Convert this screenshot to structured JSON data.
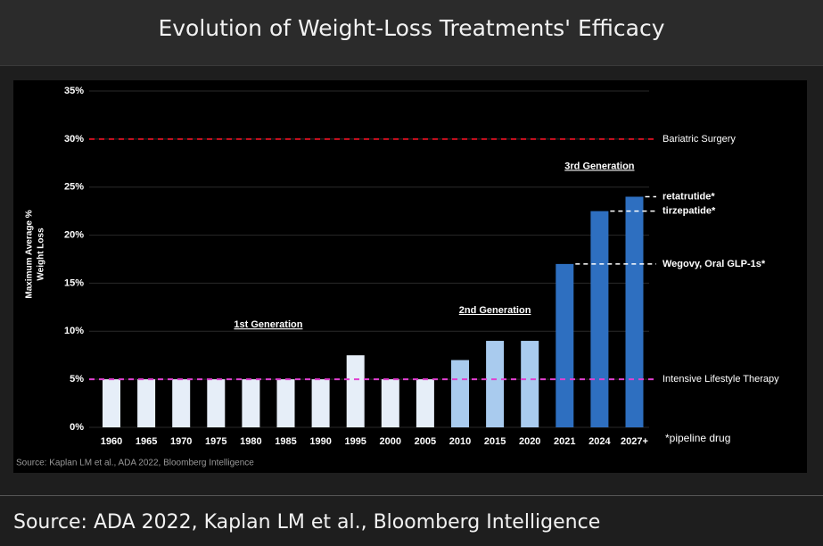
{
  "header": {
    "title": "Evolution of Weight-Loss Treatments' Efficacy"
  },
  "chart_data": {
    "type": "bar",
    "ylabel_lines": [
      "Maximum Average %",
      "Weight Loss"
    ],
    "categories": [
      "1960",
      "1965",
      "1970",
      "1975",
      "1980",
      "1985",
      "1990",
      "1995",
      "2000",
      "2005",
      "2010",
      "2015",
      "2020",
      "2021",
      "2024",
      "2027+"
    ],
    "series": [
      {
        "name": "1st Generation",
        "color": "#e6eef8",
        "values": [
          5,
          5,
          5,
          5,
          5,
          5,
          5,
          7.5,
          5,
          5,
          null,
          null,
          null,
          null,
          null,
          null
        ]
      },
      {
        "name": "2nd Generation",
        "color": "#a9cbee",
        "values": [
          null,
          null,
          null,
          null,
          null,
          null,
          null,
          null,
          null,
          null,
          7,
          9,
          9,
          null,
          null,
          null
        ]
      },
      {
        "name": "3rd Generation",
        "color": "#2e6fc0",
        "values": [
          null,
          null,
          null,
          null,
          null,
          null,
          null,
          null,
          null,
          null,
          null,
          null,
          null,
          17,
          22.5,
          24
        ]
      }
    ],
    "ylim": [
      0,
      35
    ],
    "yticks": [
      {
        "value": 0,
        "label": "0%"
      },
      {
        "value": 5,
        "label": "5%"
      },
      {
        "value": 10,
        "label": "10%"
      },
      {
        "value": 15,
        "label": "15%"
      },
      {
        "value": 20,
        "label": "20%"
      },
      {
        "value": 25,
        "label": "25%"
      },
      {
        "value": 30,
        "label": "30%"
      },
      {
        "value": 35,
        "label": "35%"
      }
    ],
    "grid": true,
    "reference_lines": [
      {
        "label": "Bariatric Surgery",
        "value": 30,
        "color": "#d01020"
      },
      {
        "label": "Intensive Lifestyle Therapy",
        "value": 5,
        "color": "#e040d0"
      }
    ],
    "annotations": [
      {
        "text": "retatrutide*",
        "value": 24
      },
      {
        "text": "tirzepatide*",
        "value": 22.5
      },
      {
        "text": "Wegovy, Oral GLP-1s*",
        "value": 17
      }
    ],
    "footnote": "*pipeline drug",
    "source": "Source: Kaplan LM et al., ADA 2022, Bloomberg Intelligence"
  },
  "footer": {
    "source": "Source: ADA 2022, Kaplan LM et al., Bloomberg Intelligence"
  }
}
